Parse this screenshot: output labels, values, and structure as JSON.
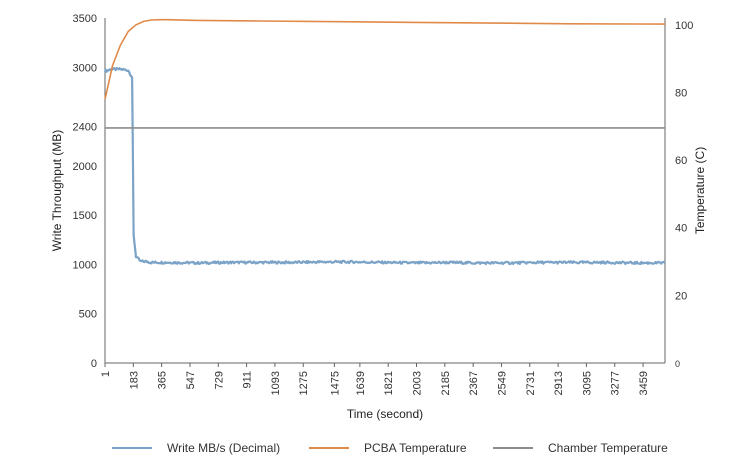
{
  "chart_data": {
    "type": "line",
    "xlabel": "Time (second)",
    "ylabel_left": "Write Throughput (MB)",
    "ylabel_right": "Temperature (C)",
    "x_ticks": [
      "1",
      "183",
      "365",
      "547",
      "729",
      "911",
      "1093",
      "1275",
      "1475",
      "1639",
      "1821",
      "2003",
      "2185",
      "2367",
      "2549",
      "2731",
      "2913",
      "3095",
      "3277",
      "3459"
    ],
    "xlim": [
      1,
      3600
    ],
    "y_left": {
      "lim": [
        0,
        3500
      ],
      "ticks": [
        "0",
        "500",
        "1000",
        "1500",
        "2000",
        "2400",
        "3000",
        "3500"
      ]
    },
    "y_right": {
      "lim": [
        0,
        102
      ],
      "ticks": [
        "0",
        "20",
        "40",
        "60",
        "80",
        "100"
      ]
    },
    "grid": false,
    "legend_position": "bottom",
    "series": [
      {
        "name": "Write MB/s (Decimal)",
        "axis": "left",
        "color": "#7ba3c7",
        "x": [
          1,
          40,
          100,
          150,
          175,
          185,
          200,
          230,
          260,
          300,
          400,
          600,
          800,
          1000,
          1200,
          1400,
          1600,
          1800,
          2000,
          2200,
          2400,
          2600,
          2800,
          3000,
          3200,
          3400,
          3600
        ],
        "values": [
          2960,
          2980,
          2980,
          2970,
          2900,
          1300,
          1080,
          1030,
          1030,
          1020,
          1020,
          1015,
          1020,
          1020,
          1020,
          1025,
          1025,
          1020,
          1015,
          1020,
          1015,
          1015,
          1020,
          1020,
          1020,
          1015,
          1015
        ]
      },
      {
        "name": "PCBA Temperature",
        "axis": "right",
        "color": "#e08a4a",
        "x": [
          1,
          50,
          100,
          150,
          200,
          250,
          300,
          350,
          400,
          600,
          1000,
          1500,
          2000,
          2500,
          3000,
          3600
        ],
        "values": [
          78,
          88,
          94,
          98,
          100,
          101,
          101.4,
          101.5,
          101.5,
          101.3,
          101.1,
          100.9,
          100.7,
          100.5,
          100.3,
          100.2
        ]
      },
      {
        "name": "Chamber Temperature",
        "axis": "right",
        "color": "#8c8c8c",
        "x": [
          1,
          3600
        ],
        "values": [
          69.5,
          69.5
        ]
      }
    ]
  }
}
